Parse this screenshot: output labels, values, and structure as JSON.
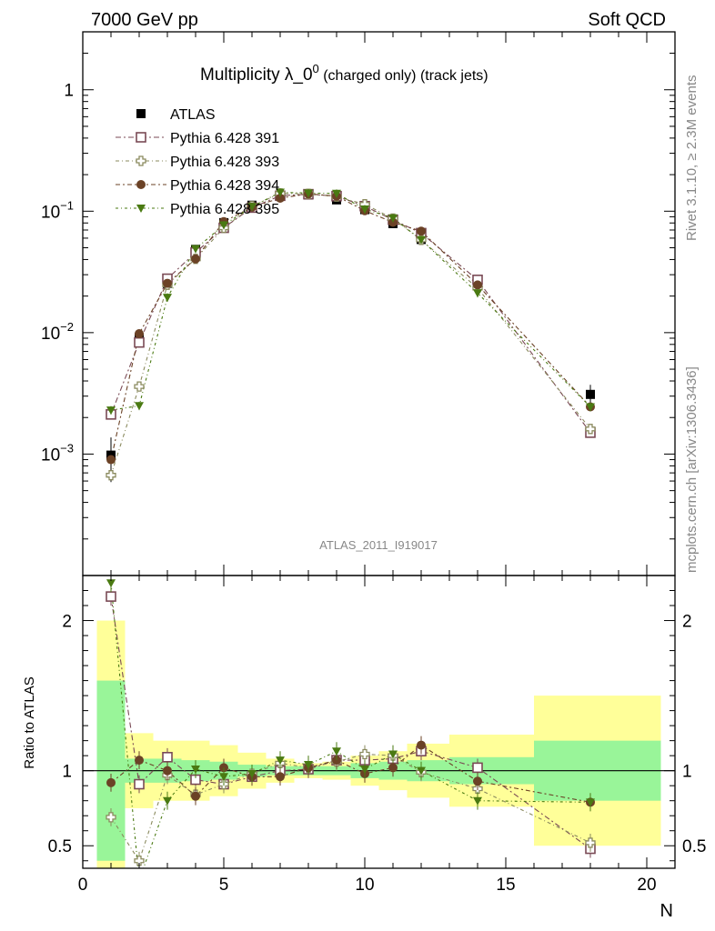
{
  "header": {
    "left": "7000 GeV pp",
    "right": "Soft QCD"
  },
  "side": {
    "rivet": "Rivet 3.1.10, ≥ 2.3M events",
    "mcplots": "mcplots.cern.ch [arXiv:1306.3436]"
  },
  "chart_data": {
    "type": "scatter",
    "title": "Multiplicity λ_0",
    "title_sup": "0",
    "title_suffix": " (charged only) (track jets)",
    "analysis": "ATLAS_2011_I919017",
    "xlabel": "N",
    "ratio_ylabel": "Ratio to ATLAS",
    "xlim": [
      0,
      21
    ],
    "ylim_main": [
      0.0001,
      3
    ],
    "ylog": true,
    "ylim_ratio": [
      0.35,
      2.3
    ],
    "xticks": [
      "0",
      "5",
      "10",
      "15",
      "20"
    ],
    "yticks_main": [
      "10^-3",
      "10^-2",
      "10^-1",
      "1"
    ],
    "yticks_ratio": [
      "0.5",
      "1",
      "2"
    ],
    "legend_position": "top-left",
    "x": [
      1,
      2,
      3,
      4,
      5,
      6,
      7,
      8,
      9,
      10,
      11,
      12,
      14,
      18
    ],
    "data": {
      "name": "ATLAS",
      "color": "#000000",
      "values": [
        0.00098,
        0.0091,
        0.0255,
        0.0485,
        0.0805,
        0.112,
        0.134,
        0.136,
        0.124,
        0.103,
        0.079,
        0.0585,
        0.0265,
        0.0031
      ],
      "band_stat": [
        0.6,
        0.08,
        0.08,
        0.07,
        0.06,
        0.04,
        0.03,
        0.03,
        0.03,
        0.05,
        0.06,
        0.07,
        0.09,
        0.2
      ],
      "band_total": [
        1.0,
        0.25,
        0.2,
        0.2,
        0.17,
        0.12,
        0.08,
        0.05,
        0.06,
        0.1,
        0.13,
        0.18,
        0.24,
        0.5
      ]
    },
    "series": [
      {
        "name": "Pythia 6.428 391",
        "color": "#7a4a55",
        "marker": "open-square",
        "values": [
          0.00212,
          0.0083,
          0.0278,
          0.0457,
          0.073,
          0.107,
          0.134,
          0.138,
          0.133,
          0.11,
          0.085,
          0.066,
          0.0272,
          0.0015
        ],
        "ratio": [
          2.16,
          0.91,
          1.09,
          0.94,
          0.91,
          0.96,
          1.0,
          1.01,
          1.07,
          1.07,
          1.08,
          1.13,
          1.02,
          0.48
        ]
      },
      {
        "name": "Pythia 6.428 393",
        "color": "#8a8a5e",
        "marker": "open-cross",
        "values": [
          0.00067,
          0.0036,
          0.0248,
          0.0405,
          0.073,
          0.11,
          0.14,
          0.139,
          0.132,
          0.114,
          0.087,
          0.058,
          0.0233,
          0.00161
        ],
        "ratio": [
          0.69,
          0.4,
          0.97,
          0.84,
          0.91,
          0.98,
          1.05,
          1.02,
          1.06,
          1.11,
          1.1,
          0.99,
          0.88,
          0.52
        ]
      },
      {
        "name": "Pythia 6.428 394",
        "color": "#6b4226",
        "marker": "filled-circle",
        "values": [
          0.0009,
          0.0098,
          0.0255,
          0.0405,
          0.082,
          0.108,
          0.128,
          0.139,
          0.133,
          0.101,
          0.081,
          0.0685,
          0.0247,
          0.00245
        ],
        "ratio": [
          0.92,
          1.07,
          1.0,
          0.83,
          1.02,
          0.96,
          0.96,
          1.02,
          1.07,
          0.98,
          1.02,
          1.17,
          0.93,
          0.79
        ]
      },
      {
        "name": "Pythia 6.428 395",
        "color": "#4a7a12",
        "marker": "filled-triangle-down",
        "values": [
          0.0023,
          0.0025,
          0.0195,
          0.049,
          0.077,
          0.109,
          0.143,
          0.141,
          0.14,
          0.104,
          0.088,
          0.0582,
          0.0212,
          0.00245
        ],
        "ratio": [
          2.25,
          0.27,
          0.8,
          1.01,
          0.96,
          0.98,
          1.07,
          1.04,
          1.13,
          1.01,
          1.11,
          1.0,
          0.8,
          0.79
        ]
      }
    ]
  }
}
